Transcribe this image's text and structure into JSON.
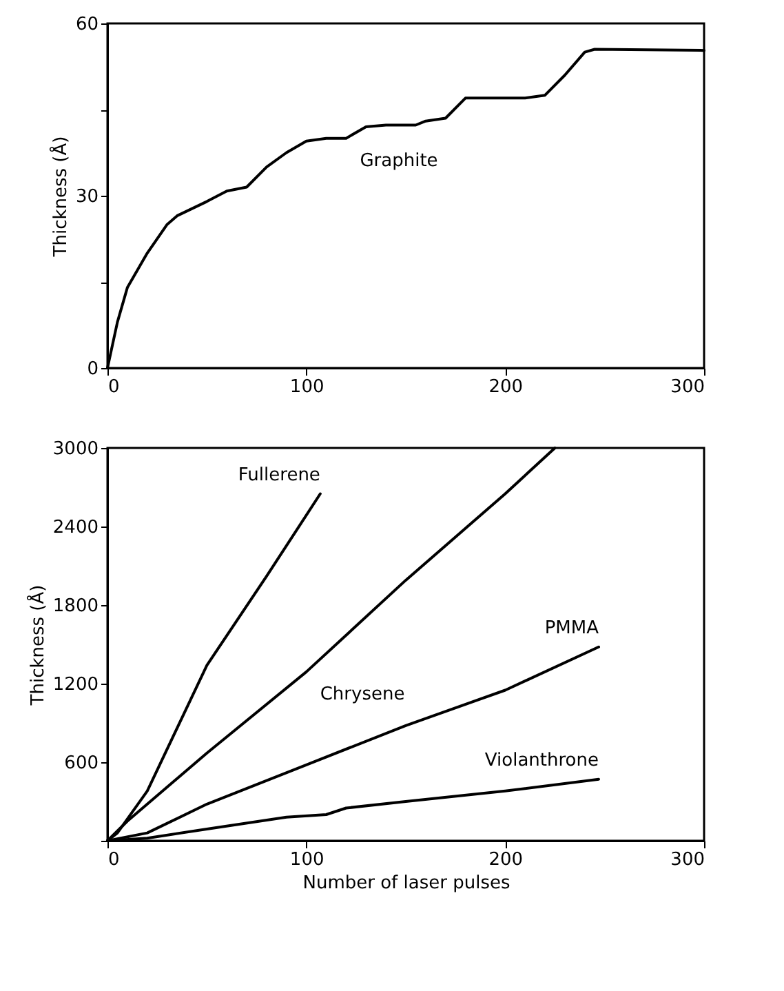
{
  "chart_data": [
    {
      "type": "line",
      "ylabel": "Thickness (Å)",
      "xlim": [
        0,
        300
      ],
      "ylim": [
        0,
        60
      ],
      "xticks": [
        0,
        100,
        200,
        300
      ],
      "yticks": [
        0,
        {
          "value": 15,
          "label": null
        },
        30,
        {
          "value": 45,
          "label": null
        },
        60
      ],
      "series": [
        {
          "name": "Graphite",
          "color": "#000000",
          "x": [
            0,
            5,
            10,
            20,
            30,
            35,
            50,
            60,
            70,
            80,
            90,
            100,
            110,
            120,
            130,
            140,
            155,
            160,
            170,
            180,
            190,
            210,
            220,
            230,
            240,
            245,
            300
          ],
          "values": [
            0,
            8,
            14,
            20,
            25,
            26.5,
            29,
            30.8,
            31.5,
            35,
            37.5,
            39.5,
            40,
            40,
            42,
            42.3,
            42.3,
            43,
            43.5,
            47,
            47,
            47,
            47.5,
            51,
            55,
            55.5,
            55.3
          ]
        }
      ]
    },
    {
      "type": "line",
      "xlabel": "Number of laser pulses",
      "ylabel": "Thickness (Å)",
      "xlim": [
        0,
        300
      ],
      "ylim": [
        0,
        3000
      ],
      "xticks": [
        0,
        100,
        200,
        300
      ],
      "yticks": [
        {
          "value": 0,
          "label": null
        },
        600,
        1200,
        1800,
        2400,
        3000
      ],
      "series": [
        {
          "name": "Fullerene",
          "color": "#000000",
          "x": [
            0,
            5,
            20,
            50,
            80,
            107
          ],
          "values": [
            0,
            60,
            380,
            1340,
            2020,
            2650
          ]
        },
        {
          "name": "Chrysene",
          "color": "#000000",
          "x": [
            0,
            10,
            50,
            100,
            150,
            200,
            225
          ],
          "values": [
            0,
            150,
            670,
            1290,
            1990,
            2650,
            3000
          ]
        },
        {
          "name": "PMMA",
          "color": "#000000",
          "x": [
            0,
            20,
            50,
            100,
            150,
            200,
            247
          ],
          "values": [
            0,
            60,
            280,
            580,
            880,
            1150,
            1480
          ]
        },
        {
          "name": "Violanthrone",
          "color": "#000000",
          "x": [
            0,
            20,
            50,
            90,
            110,
            120,
            150,
            200,
            247
          ],
          "values": [
            0,
            20,
            90,
            180,
            200,
            250,
            300,
            380,
            470
          ]
        }
      ]
    }
  ]
}
